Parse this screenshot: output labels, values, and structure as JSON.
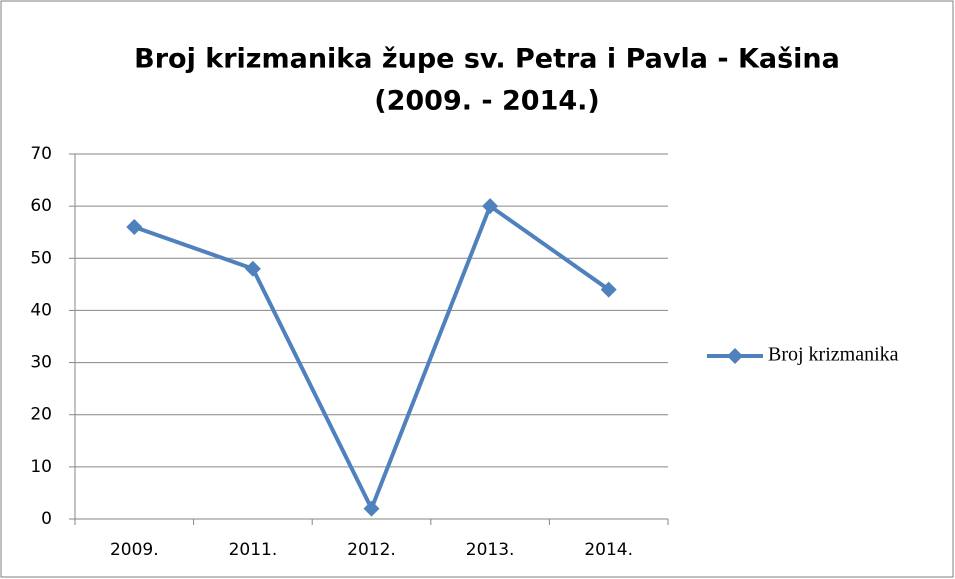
{
  "chart_data": {
    "type": "line",
    "title": [
      "Broj krizmanika župe sv. Petra i Pavla - Kašina",
      "(2009. - 2014.)"
    ],
    "categories": [
      "2009.",
      "2011.",
      "2012.",
      "2013.",
      "2014."
    ],
    "series": [
      {
        "name": "Broj krizmanika",
        "color": "#4f81bd",
        "values": [
          56,
          48,
          2,
          60,
          44
        ]
      }
    ],
    "ylim": [
      0,
      70
    ],
    "yticks": [
      0,
      10,
      20,
      30,
      40,
      50,
      60,
      70
    ],
    "grid": true,
    "legend": "right"
  }
}
